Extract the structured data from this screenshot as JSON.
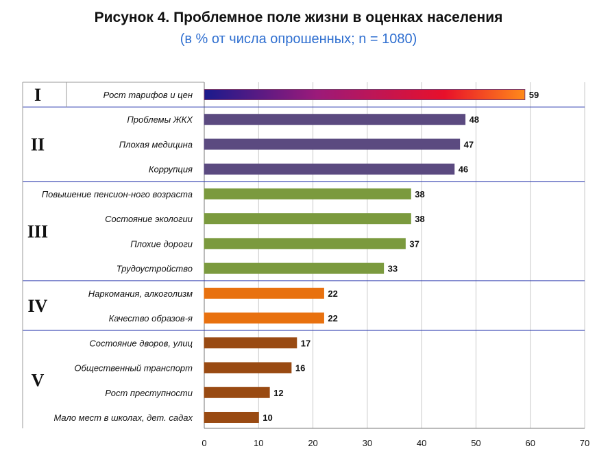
{
  "title": "Рисунок 4. Проблемное поле жизни в оценках населения",
  "subtitle": "(в % от числа опрошенных; n  = 1080)",
  "chart_data": {
    "type": "bar",
    "orientation": "horizontal",
    "title": "Рисунок 4. Проблемное поле жизни в оценках населения",
    "subtitle": "(в % от числа опрошенных; n  = 1080)",
    "xlim": [
      0,
      70
    ],
    "x_ticks": [
      0,
      10,
      20,
      30,
      40,
      50,
      60,
      70
    ],
    "grid": "vertical",
    "categories": [
      "Рост тарифов и цен",
      "Проблемы ЖКХ",
      "Плохая медицина",
      "Коррупция",
      "Повышение  пенсион-ного возраста",
      "Состояние экологии",
      "Плохие дороги",
      "Трудоустройство",
      "Наркомания, алкоголизм",
      "Качество образов-я",
      "Состояние дворов, улиц",
      "Общественный транспорт",
      "Рост преступности",
      "Мало мест в школах, дет. садах"
    ],
    "values": [
      59,
      48,
      47,
      46,
      38,
      38,
      37,
      33,
      22,
      22,
      17,
      16,
      12,
      10
    ],
    "value_labels": [
      "59",
      "48",
      "47",
      "46",
      "38",
      "38",
      "37",
      "33",
      "22",
      "22",
      "17",
      "16",
      "12",
      "10"
    ],
    "groups": [
      {
        "label": "I",
        "count": 1,
        "color": "gradient"
      },
      {
        "label": "II",
        "count": 3,
        "color": "#5b4a80"
      },
      {
        "label": "III",
        "count": 4,
        "color": "#7b9a3e"
      },
      {
        "label": "IV",
        "count": 2,
        "color": "#e8710f"
      },
      {
        "label": "V",
        "count": 4,
        "color": "#994a12"
      }
    ],
    "gradient_colors": [
      "#1a1a8c",
      "#9b1a7a",
      "#e8102a",
      "#ff8a1a"
    ],
    "separator_color": "#3340b0"
  }
}
